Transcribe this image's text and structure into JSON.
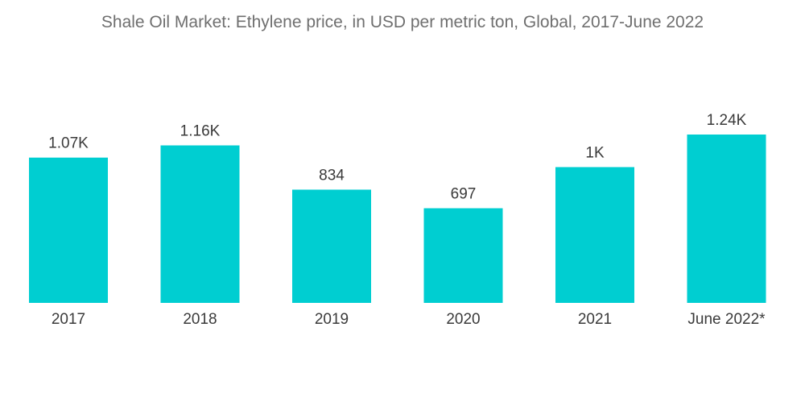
{
  "chart_data": {
    "type": "bar",
    "title": "Shale Oil Market: Ethylene price, in USD per metric ton, Global, 2017-June 2022",
    "categories": [
      "2017",
      "2018",
      "2019",
      "2020",
      "2021",
      "June 2022*"
    ],
    "values": [
      1070,
      1160,
      834,
      697,
      1000,
      1240
    ],
    "value_labels": [
      "1.07K",
      "1.16K",
      "834",
      "697",
      "1K",
      "1.24K"
    ],
    "xlabel": "",
    "ylabel": "",
    "ylim": [
      0,
      1240
    ],
    "grid": false,
    "legend": "none",
    "bar_color": "#00CED1"
  }
}
